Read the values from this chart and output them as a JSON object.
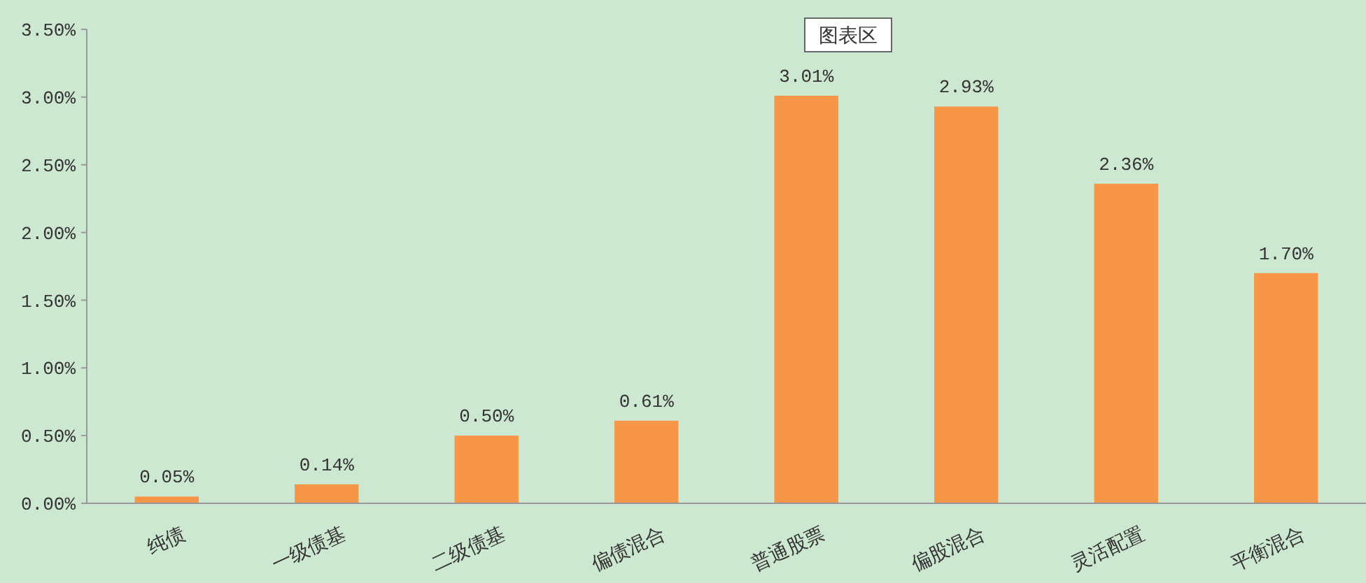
{
  "chart_data": {
    "type": "bar",
    "categories": [
      "纯债",
      "一级债基",
      "二级债基",
      "偏债混合",
      "普通股票",
      "偏股混合",
      "灵活配置",
      "平衡混合"
    ],
    "values": [
      0.05,
      0.14,
      0.5,
      0.61,
      3.01,
      2.93,
      2.36,
      1.7
    ],
    "value_labels": [
      "0.05%",
      "0.14%",
      "0.50%",
      "0.61%",
      "3.01%",
      "2.93%",
      "2.36%",
      "1.70%"
    ],
    "color": "#f79646",
    "ylim": [
      0,
      3.5
    ],
    "yticks": [
      {
        "value": 0,
        "label": "0.00%"
      },
      {
        "value": 0.5,
        "label": "0.50%"
      },
      {
        "value": 1,
        "label": "1.00%"
      },
      {
        "value": 1.5,
        "label": "1.50%"
      },
      {
        "value": 2,
        "label": "2.00%"
      },
      {
        "value": 2.5,
        "label": "2.50%"
      },
      {
        "value": 3,
        "label": "3.00%"
      },
      {
        "value": 3.5,
        "label": "3.50%"
      }
    ],
    "annotations": [
      "图表区"
    ]
  }
}
